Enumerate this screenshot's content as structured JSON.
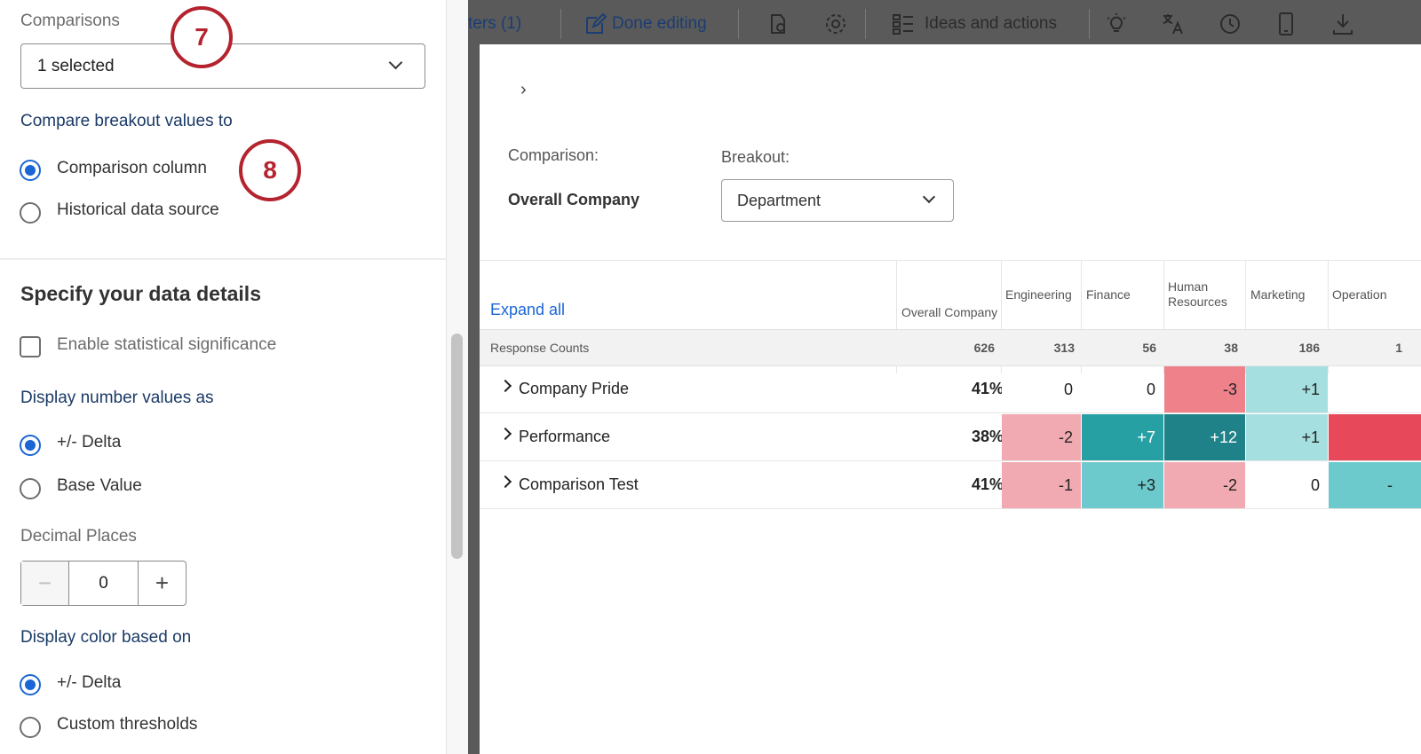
{
  "settings": {
    "comparisons_label": "Comparisons",
    "comparisons_value": "1 selected",
    "compare_to_label": "Compare breakout values to",
    "compare_options": [
      "Comparison column",
      "Historical data source"
    ],
    "section_title": "Specify your data details",
    "stat_sig_label": "Enable statistical significance",
    "display_values_label": "Display number values as",
    "display_value_options": [
      "+/- Delta",
      "Base Value"
    ],
    "decimal_label": "Decimal Places",
    "decimal_value": "0",
    "stepper_minus": "−",
    "stepper_plus": "+",
    "color_label": "Display color based on",
    "color_options": [
      "+/- Delta",
      "Custom thresholds"
    ]
  },
  "callouts": [
    "7",
    "8"
  ],
  "toolbar": {
    "filters_label": "ters (1)",
    "done_editing": "Done editing",
    "ideas_label": "Ideas and actions",
    "icons": [
      "edit-icon",
      "lightbulb-icon",
      "gear-icon",
      "list-icon",
      "idea-icon",
      "translate-icon",
      "history-icon",
      "mobile-icon",
      "download-icon"
    ]
  },
  "widget": {
    "expand_chevron": "›",
    "comparison_label": "Comparison:",
    "comparison_value": "Overall Company",
    "breakout_label": "Breakout:",
    "breakout_value": "Department",
    "expand_all": "Expand all",
    "columns": [
      "Overall Company",
      "Engineering",
      "Finance",
      "Human Resources",
      "Marketing",
      "Operation"
    ],
    "counts_label": "Response Counts",
    "counts": [
      "626",
      "313",
      "56",
      "38",
      "186",
      "1"
    ],
    "rows": [
      {
        "label": "Company Pride",
        "overall": "41%",
        "cells": [
          "0",
          "0",
          "-3",
          "+1",
          ""
        ]
      },
      {
        "label": "Performance",
        "overall": "38%",
        "cells": [
          "-2",
          "+7",
          "+12",
          "+1",
          ""
        ]
      },
      {
        "label": "Comparison Test",
        "overall": "41%",
        "cells": [
          "-1",
          "+3",
          "-2",
          "0",
          "-"
        ]
      }
    ]
  },
  "colors": {
    "accent_blue": "#1a66d6",
    "callout_red": "#b4232e",
    "neg_light": "#f2aab2",
    "neg_mid": "#ee8189",
    "neg_strong": "#e8495a",
    "pos_light": "#a6dfe0",
    "pos_mid": "#6cc9cc",
    "pos_strong": "#27a0a4",
    "pos_darker": "#1e8288"
  }
}
